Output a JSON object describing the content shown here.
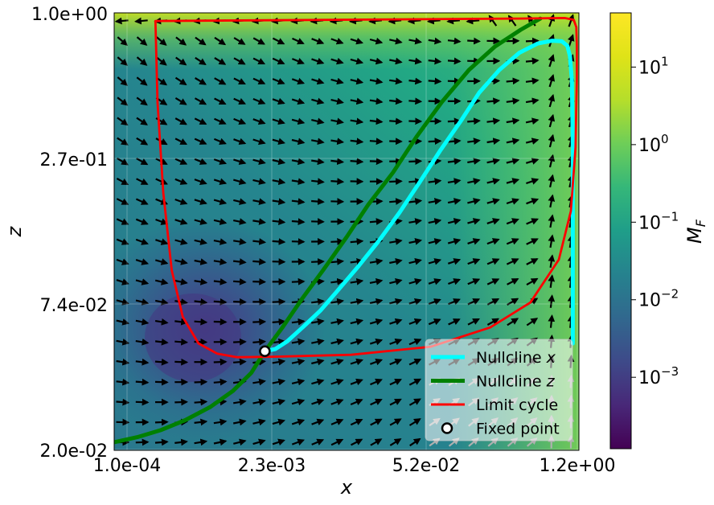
{
  "chart_data": {
    "type": "line",
    "title": "",
    "xlabel": "x",
    "ylabel": "z",
    "xscale": "log",
    "yscale": "log",
    "xlim": [
      0.0001,
      1.2
    ],
    "ylim": [
      0.02,
      1.0
    ],
    "xticks": [
      "1.0e-04",
      "2.3e-03",
      "5.2e-02",
      "1.2e+00"
    ],
    "yticks": [
      "1.0e+00",
      "2.7e-01",
      "7.4e-02",
      "2.0e-02"
    ],
    "grid": true,
    "legend_position": "lower-right",
    "background_heatmap": {
      "quantity_label": "M_F",
      "colormap": "viridis",
      "colorbar_scale": "log",
      "colorbar_range": [
        0.00012,
        50
      ],
      "colorbar_ticks": [
        {
          "base": "10",
          "exp": "1",
          "value": 10
        },
        {
          "base": "10",
          "exp": "0",
          "value": 1
        },
        {
          "base": "10",
          "exp": "−1",
          "value": 0.1
        },
        {
          "base": "10",
          "exp": "−2",
          "value": 0.01
        },
        {
          "base": "10",
          "exp": "−3",
          "value": 0.001
        }
      ]
    },
    "series": [
      {
        "name": "Nullcline x",
        "color": "#00ffff",
        "points": [
          [
            0.0021,
            0.0485
          ],
          [
            0.0026,
            0.0495
          ],
          [
            0.0033,
            0.053
          ],
          [
            0.0045,
            0.06
          ],
          [
            0.0065,
            0.07
          ],
          [
            0.0095,
            0.085
          ],
          [
            0.014,
            0.104
          ],
          [
            0.021,
            0.13
          ],
          [
            0.032,
            0.168
          ],
          [
            0.048,
            0.22
          ],
          [
            0.072,
            0.29
          ],
          [
            0.11,
            0.38
          ],
          [
            0.16,
            0.49
          ],
          [
            0.24,
            0.6
          ],
          [
            0.36,
            0.7
          ],
          [
            0.52,
            0.76
          ],
          [
            0.7,
            0.78
          ],
          [
            0.85,
            0.775
          ],
          [
            0.95,
            0.745
          ],
          [
            1.0,
            0.68
          ],
          [
            1.04,
            0.55
          ],
          [
            1.06,
            0.3
          ],
          [
            1.06,
            0.1
          ],
          [
            1.06,
            0.052
          ]
        ]
      },
      {
        "name": "Nullcline z",
        "color": "#008000",
        "points": [
          [
            0.0001,
            0.0215
          ],
          [
            0.00016,
            0.0225
          ],
          [
            0.00026,
            0.024
          ],
          [
            0.00042,
            0.0262
          ],
          [
            0.0007,
            0.0295
          ],
          [
            0.0011,
            0.034
          ],
          [
            0.0016,
            0.04
          ],
          [
            0.0021,
            0.0485
          ],
          [
            0.003,
            0.06
          ],
          [
            0.0045,
            0.078
          ],
          [
            0.0068,
            0.1
          ],
          [
            0.011,
            0.135
          ],
          [
            0.017,
            0.18
          ],
          [
            0.028,
            0.24
          ],
          [
            0.045,
            0.33
          ],
          [
            0.075,
            0.45
          ],
          [
            0.13,
            0.6
          ],
          [
            0.22,
            0.74
          ],
          [
            0.37,
            0.86
          ],
          [
            0.55,
            0.95
          ]
        ]
      },
      {
        "name": "Limit cycle",
        "color": "#ff0000",
        "points": [
          [
            0.00023,
            0.93
          ],
          [
            0.35,
            0.95
          ],
          [
            0.9,
            0.955
          ],
          [
            1.08,
            0.94
          ],
          [
            1.14,
            0.88
          ],
          [
            1.15,
            0.75
          ],
          [
            1.15,
            0.55
          ],
          [
            1.12,
            0.3
          ],
          [
            1.02,
            0.17
          ],
          [
            0.8,
            0.11
          ],
          [
            0.45,
            0.075
          ],
          [
            0.2,
            0.06
          ],
          [
            0.06,
            0.0505
          ],
          [
            0.012,
            0.047
          ],
          [
            0.0025,
            0.0462
          ],
          [
            0.0012,
            0.046
          ],
          [
            0.0008,
            0.0475
          ],
          [
            0.00055,
            0.052
          ],
          [
            0.0004,
            0.066
          ],
          [
            0.00032,
            0.1
          ],
          [
            0.00027,
            0.2
          ],
          [
            0.00024,
            0.45
          ],
          [
            0.00023,
            0.93
          ]
        ]
      }
    ],
    "fixed_point": {
      "name": "Fixed point",
      "x": 0.0021,
      "y": 0.0485
    },
    "legend": [
      {
        "label": "Nullcline",
        "var": "x",
        "kind": "nullcline-x",
        "color": "#00ffff"
      },
      {
        "label": "Nullcline",
        "var": "z",
        "kind": "nullcline-z",
        "color": "#008000"
      },
      {
        "label": "Limit cycle",
        "var": "",
        "kind": "limit-cycle",
        "color": "#ff0000"
      },
      {
        "label": "Fixed point",
        "var": "",
        "kind": "fixed-point",
        "color": "#000000"
      }
    ]
  }
}
